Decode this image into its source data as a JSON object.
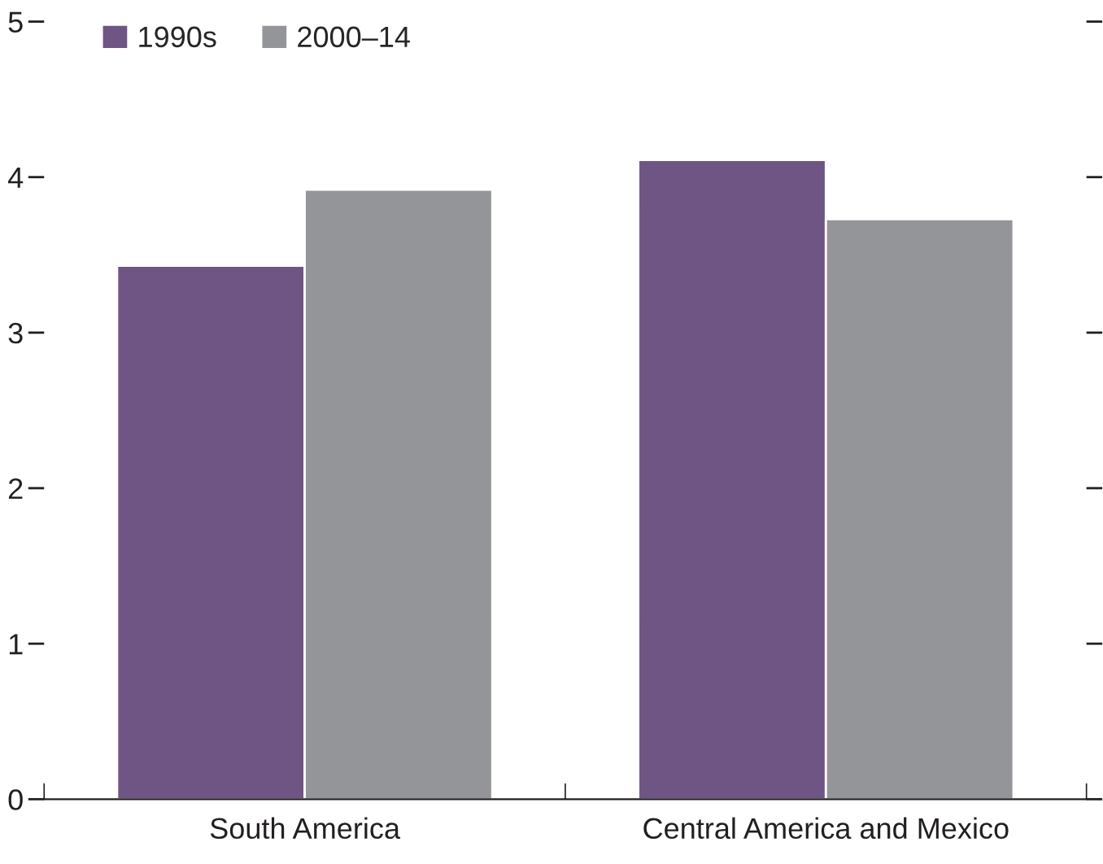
{
  "chart_data": {
    "type": "bar",
    "categories": [
      "South America",
      "Central America and Mexico"
    ],
    "series": [
      {
        "name": "1990s",
        "color": "#6f5584",
        "values": [
          3.43,
          4.11
        ]
      },
      {
        "name": "2000–14",
        "color": "#949598",
        "values": [
          3.92,
          3.73
        ]
      }
    ],
    "ylim": [
      0,
      5
    ],
    "yticks": [
      0,
      1,
      2,
      3,
      4,
      5
    ],
    "grid": false,
    "legend": "top left"
  }
}
